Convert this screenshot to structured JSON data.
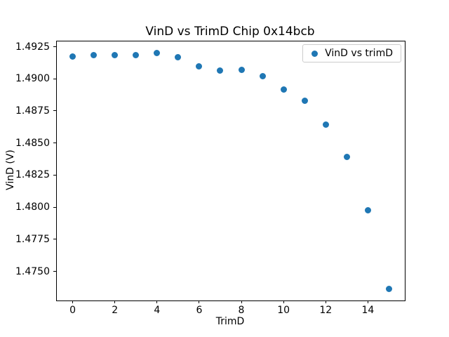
{
  "window": {
    "background": "#ffffff"
  },
  "chart_data": {
    "type": "scatter",
    "title": "VinD vs TrimD Chip 0x14bcb",
    "xlabel": "TrimD",
    "ylabel": "VinD (V)",
    "grid": false,
    "xlim": [
      -0.75,
      15.75
    ],
    "ylim": [
      1.47274,
      1.49291
    ],
    "x_ticks": [
      {
        "v": 0,
        "label": "0"
      },
      {
        "v": 2,
        "label": "2"
      },
      {
        "v": 4,
        "label": "4"
      },
      {
        "v": 6,
        "label": "6"
      },
      {
        "v": 8,
        "label": "8"
      },
      {
        "v": 10,
        "label": "10"
      },
      {
        "v": 12,
        "label": "12"
      },
      {
        "v": 14,
        "label": "14"
      }
    ],
    "y_ticks": [
      {
        "v": 1.4925,
        "label": "1.4925"
      },
      {
        "v": 1.49,
        "label": "1.4900"
      },
      {
        "v": 1.4875,
        "label": "1.4875"
      },
      {
        "v": 1.485,
        "label": "1.4850"
      },
      {
        "v": 1.4825,
        "label": "1.4825"
      },
      {
        "v": 1.48,
        "label": "1.4800"
      },
      {
        "v": 1.4775,
        "label": "1.4775"
      },
      {
        "v": 1.475,
        "label": "1.4750"
      }
    ],
    "series": [
      {
        "name": "VinD vs trimD",
        "color": "#1f77b4",
        "marker": "circle",
        "x": [
          0,
          1,
          2,
          3,
          4,
          5,
          6,
          7,
          8,
          9,
          10,
          11,
          12,
          13,
          14,
          15
        ],
        "y": [
          1.49174,
          1.49185,
          1.49185,
          1.49186,
          1.49199,
          1.49167,
          1.49097,
          1.49066,
          1.4907,
          1.49019,
          1.48917,
          1.48829,
          1.48643,
          1.48391,
          1.47976,
          1.47366
        ]
      }
    ],
    "legend": {
      "position": "upper-right",
      "entries": [
        "VinD vs trimD"
      ],
      "marker_color": "#1f77b4"
    }
  }
}
